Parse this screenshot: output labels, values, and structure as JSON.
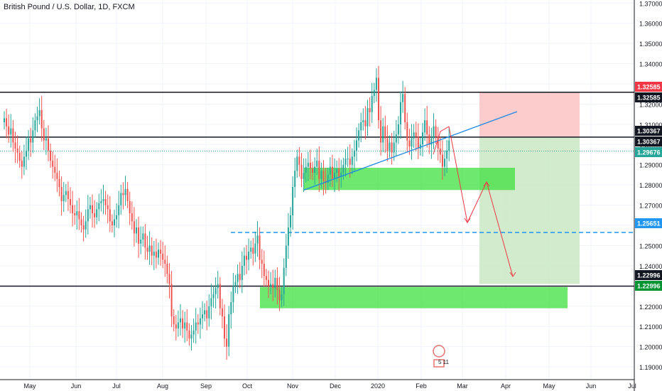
{
  "chart_data": {
    "type": "candlestick",
    "title": "British Pound / U.S. Dollar, 1D, FXCM",
    "y_ticks": [
      "1.37000",
      "1.36000",
      "1.35000",
      "1.34000",
      "1.33000",
      "1.32000",
      "1.31000",
      "1.30000",
      "1.29000",
      "1.28000",
      "1.27000",
      "1.26000",
      "1.25000",
      "1.24000",
      "1.23000",
      "1.22000",
      "1.21000",
      "1.20000",
      "1.19000"
    ],
    "x_ticks": [
      "May",
      "Jun",
      "Jul",
      "Aug",
      "Sep",
      "Oct",
      "Nov",
      "Dec",
      "2020",
      "Feb",
      "Mar",
      "Apr",
      "May",
      "Jun",
      "Jul"
    ],
    "ylim": [
      1.1837,
      1.3715
    ],
    "price_levels": [
      {
        "label": "1.32585",
        "value": 1.32585,
        "label_bg": "#f23645",
        "label_fg": "#ffffff",
        "line": "#131722"
      },
      {
        "label": "1.32585",
        "value": 1.32585,
        "label_bg": "#131722",
        "label_fg": "#ffffff",
        "line": "none"
      },
      {
        "label": "1.30367",
        "value": 1.30367,
        "label_bg": "#131722",
        "label_fg": "#ffffff",
        "line": "#131722"
      },
      {
        "label": "1.30367",
        "value": 1.30367,
        "label_bg": "#131722",
        "label_fg": "#ffffff",
        "line": "none"
      },
      {
        "label": "1.29676",
        "value": 1.29676,
        "label_bg": "#26a69a",
        "label_fg": "#ffffff",
        "line": "#26a69a"
      },
      {
        "label": "1.25651",
        "value": 1.25651,
        "label_bg": "#2196f3",
        "label_fg": "#ffffff",
        "line": "#2196f3"
      },
      {
        "label": "1.22996",
        "value": 1.22996,
        "label_bg": "#131722",
        "label_fg": "#ffffff",
        "line": "#131722"
      },
      {
        "label": "1.22996",
        "value": 1.22996,
        "label_bg": "#009432",
        "label_fg": "#ffffff",
        "line": "none"
      }
    ],
    "ohlc_closes": [
      1.313,
      1.309,
      1.305,
      1.308,
      1.301,
      1.298,
      1.296,
      1.292,
      1.289,
      1.294,
      1.297,
      1.303,
      1.301,
      1.307,
      1.312,
      1.314,
      1.317,
      1.308,
      1.302,
      1.303,
      1.297,
      1.292,
      1.289,
      1.286,
      1.283,
      1.279,
      1.272,
      1.275,
      1.277,
      1.273,
      1.27,
      1.266,
      1.265,
      1.267,
      1.263,
      1.26,
      1.258,
      1.262,
      1.268,
      1.27,
      1.266,
      1.264,
      1.268,
      1.271,
      1.272,
      1.273,
      1.27,
      1.268,
      1.262,
      1.26,
      1.263,
      1.265,
      1.27,
      1.276,
      1.275,
      1.278,
      1.272,
      1.266,
      1.262,
      1.256,
      1.259,
      1.251,
      1.253,
      1.256,
      1.249,
      1.247,
      1.25,
      1.245,
      1.247,
      1.244,
      1.248,
      1.246,
      1.243,
      1.241,
      1.236,
      1.231,
      1.215,
      1.211,
      1.209,
      1.212,
      1.214,
      1.209,
      1.212,
      1.208,
      1.204,
      1.206,
      1.208,
      1.212,
      1.211,
      1.214,
      1.216,
      1.218,
      1.214,
      1.22,
      1.224,
      1.226,
      1.229,
      1.231,
      1.219,
      1.215,
      1.204,
      1.2,
      1.216,
      1.222,
      1.23,
      1.232,
      1.236,
      1.233,
      1.24,
      1.245,
      1.243,
      1.247,
      1.249,
      1.246,
      1.251,
      1.255,
      1.243,
      1.241,
      1.235,
      1.233,
      1.23,
      1.231,
      1.229,
      1.234,
      1.228,
      1.223,
      1.226,
      1.239,
      1.25,
      1.259,
      1.265,
      1.279,
      1.287,
      1.294,
      1.29,
      1.283,
      1.286,
      1.289,
      1.291,
      1.288,
      1.286,
      1.289,
      1.292,
      1.283,
      1.287,
      1.282,
      1.281,
      1.285,
      1.289,
      1.283,
      1.286,
      1.288,
      1.284,
      1.286,
      1.29,
      1.293,
      1.293,
      1.29,
      1.294,
      1.297,
      1.302,
      1.307,
      1.311,
      1.312,
      1.309,
      1.318,
      1.316,
      1.324,
      1.327,
      1.333,
      1.312,
      1.301,
      1.309,
      1.303,
      1.297,
      1.301,
      1.296,
      1.301,
      1.305,
      1.31,
      1.321,
      1.325,
      1.311,
      1.302,
      1.299,
      1.303,
      1.306,
      1.304,
      1.298,
      1.3,
      1.306,
      1.312,
      1.305,
      1.3,
      1.303,
      1.309,
      1.304,
      1.298,
      1.295,
      1.289,
      1.293,
      1.297,
      1.302
    ]
  },
  "shapes": {
    "upper_level_line": "1.32585",
    "middle_level_line": "1.30367",
    "target_level_line": "1.25651",
    "lower_level_line": "1.22996"
  },
  "watermark": {
    "text": "5 11"
  },
  "colors": {
    "up": "#26a69a",
    "down": "#ef5350",
    "grid": "#f0f3fa",
    "axis_text": "#131722",
    "zone_green": "#3fe03f",
    "profit_zone": "#c9e7c3",
    "loss_zone": "#fbc3c3",
    "trendline": "#1e88e5",
    "path_arrow": "#f23645"
  }
}
